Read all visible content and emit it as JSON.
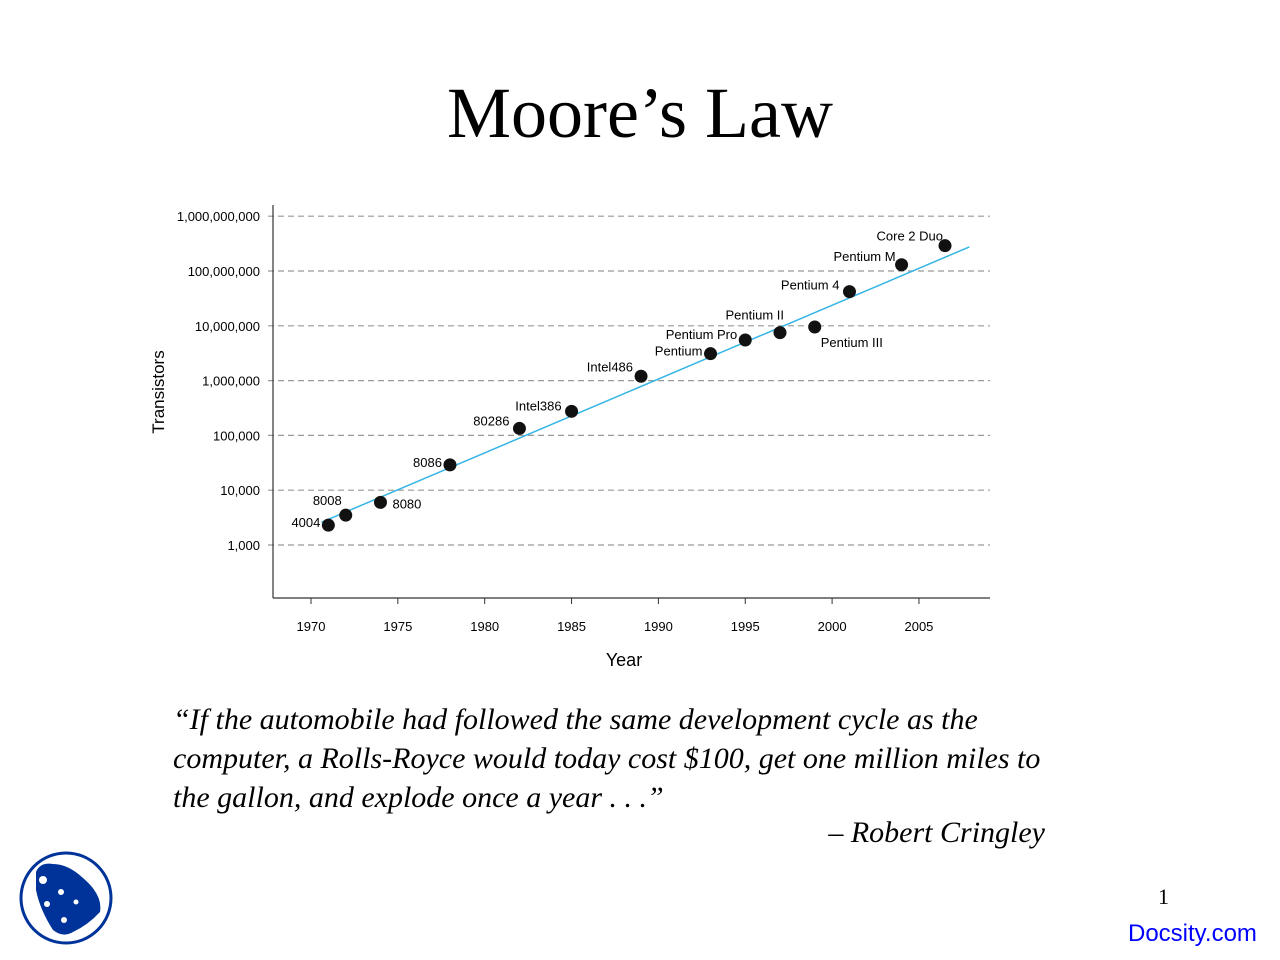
{
  "slide": {
    "title": "Moore’s Law",
    "quote": "“If the automobile had followed the same development cycle as the computer, a Rolls-Royce would today cost $100, get one million miles to the gallon, and explode once a year . . .”",
    "author": "– Robert Cringley",
    "page_number": "1",
    "brand": "Docsity.com"
  },
  "chart_data": {
    "type": "scatter",
    "xlabel": "Year",
    "ylabel": "Transistors",
    "y_scale": "log",
    "xlim": [
      1968,
      2009
    ],
    "ylim": [
      100,
      1000000000
    ],
    "grid": "horizontal dashed",
    "x_ticks": [
      "1970",
      "1975",
      "1980",
      "1985",
      "1990",
      "1995",
      "2000",
      "2005"
    ],
    "y_ticks": [
      "1,000,000,000",
      "100,000,000",
      "10,000,000",
      "1,000,000",
      "100,000",
      "10,000",
      "1,000"
    ],
    "points": [
      {
        "label": "4004",
        "x": 1971,
        "y": 2300
      },
      {
        "label": "8008",
        "x": 1972,
        "y": 3500
      },
      {
        "label": "8080",
        "x": 1974,
        "y": 6000
      },
      {
        "label": "8086",
        "x": 1978,
        "y": 29000
      },
      {
        "label": "80286",
        "x": 1982,
        "y": 134000
      },
      {
        "label": "Intel386",
        "x": 1985,
        "y": 275000
      },
      {
        "label": "Intel486",
        "x": 1989,
        "y": 1200000
      },
      {
        "label": "Pentium",
        "x": 1993,
        "y": 3100000
      },
      {
        "label": "Pentium Pro",
        "x": 1995,
        "y": 5500000
      },
      {
        "label": "Pentium II",
        "x": 1997,
        "y": 7500000
      },
      {
        "label": "Pentium III",
        "x": 1999,
        "y": 9500000
      },
      {
        "label": "Pentium 4",
        "x": 2001,
        "y": 42000000
      },
      {
        "label": "Pentium M",
        "x": 2004,
        "y": 130000000
      },
      {
        "label": "Core 2 Duo",
        "x": 2006.5,
        "y": 290000000
      }
    ],
    "trend_line": {
      "x": [
        1970.6,
        2007.9
      ],
      "y": [
        2600,
        275000000
      ]
    },
    "colors": {
      "points": "#111111",
      "trend": "#33b5e5",
      "grid": "#999999"
    }
  }
}
